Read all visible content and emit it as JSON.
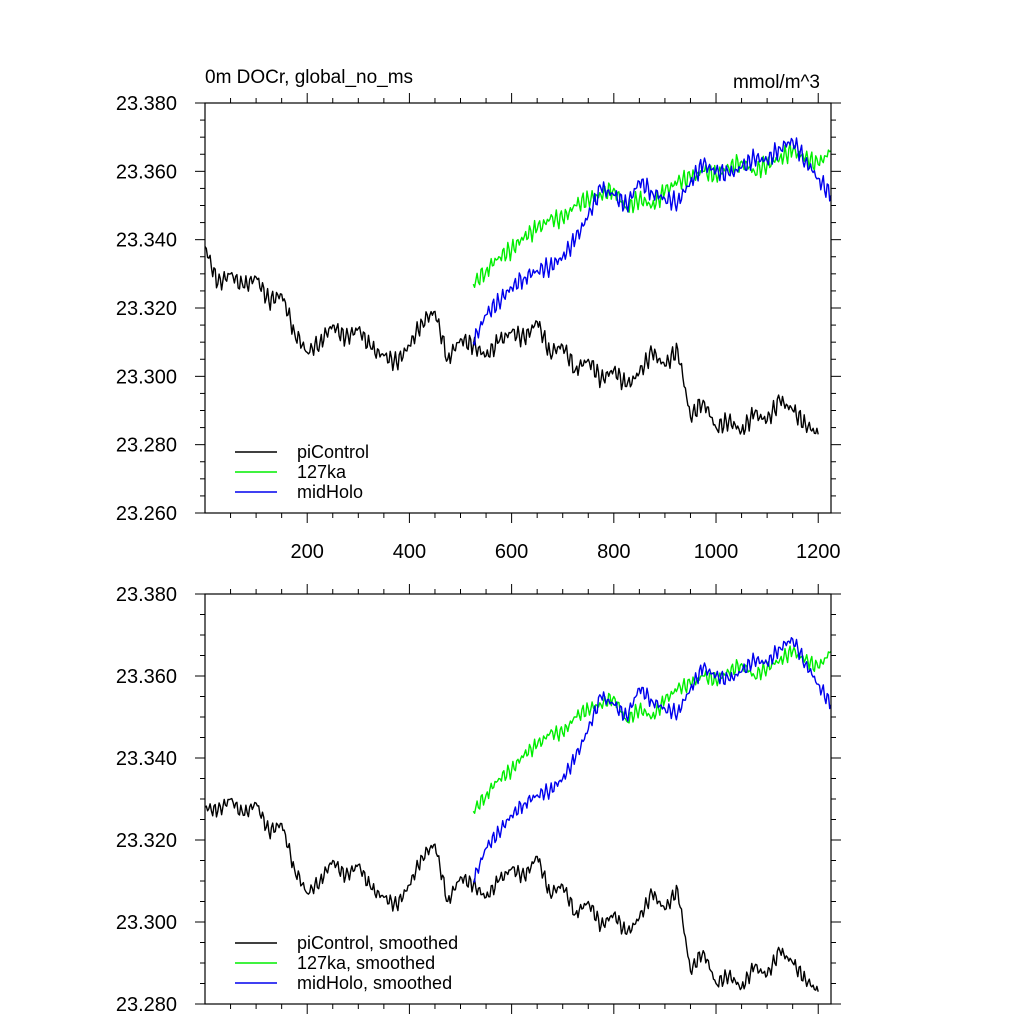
{
  "chart_data": [
    {
      "type": "line",
      "title": "0m DOCr, global_no_ms",
      "units": "mmol/m^3",
      "xlabel": "",
      "ylabel": "",
      "xlim": [
        0,
        1225
      ],
      "ylim": [
        23.26,
        23.38
      ],
      "xticks": [
        200,
        400,
        600,
        800,
        1000,
        1200
      ],
      "xtick_labels": [
        "200",
        "400",
        "600",
        "800",
        "1000",
        "1200"
      ],
      "yticks": [
        23.26,
        23.28,
        23.3,
        23.32,
        23.34,
        23.36,
        23.38
      ],
      "ytick_labels": [
        "23.260",
        "23.280",
        "23.300",
        "23.320",
        "23.340",
        "23.360",
        "23.380"
      ],
      "grid": false,
      "legend_position": "bottom-left",
      "series": [
        {
          "name": "piControl",
          "color": "#000000",
          "x": [
            0,
            25,
            50,
            75,
            100,
            125,
            150,
            175,
            200,
            225,
            250,
            275,
            300,
            325,
            350,
            375,
            400,
            425,
            450,
            475,
            500,
            525,
            550,
            575,
            600,
            625,
            650,
            675,
            700,
            725,
            750,
            775,
            800,
            825,
            850,
            875,
            900,
            925,
            950,
            975,
            1000,
            1025,
            1050,
            1075,
            1100,
            1125,
            1150,
            1175,
            1200
          ],
          "y": [
            23.338,
            23.327,
            23.33,
            23.326,
            23.329,
            23.322,
            23.324,
            23.313,
            23.307,
            23.31,
            23.315,
            23.311,
            23.314,
            23.308,
            23.306,
            23.304,
            23.309,
            23.316,
            23.319,
            23.305,
            23.311,
            23.309,
            23.306,
            23.31,
            23.313,
            23.311,
            23.316,
            23.307,
            23.309,
            23.302,
            23.305,
            23.299,
            23.302,
            23.297,
            23.301,
            23.307,
            23.303,
            23.308,
            23.288,
            23.293,
            23.285,
            23.287,
            23.284,
            23.289,
            23.287,
            23.293,
            23.29,
            23.286,
            23.283
          ]
        },
        {
          "name": "127ka",
          "color": "#00ee00",
          "x": [
            525,
            550,
            575,
            600,
            625,
            650,
            675,
            700,
            725,
            750,
            775,
            800,
            825,
            850,
            875,
            900,
            925,
            950,
            975,
            1000,
            1025,
            1050,
            1075,
            1100,
            1125,
            1150,
            1175,
            1200,
            1225
          ],
          "y": [
            23.327,
            23.331,
            23.335,
            23.337,
            23.341,
            23.343,
            23.346,
            23.346,
            23.35,
            23.352,
            23.353,
            23.355,
            23.349,
            23.352,
            23.35,
            23.354,
            23.357,
            23.358,
            23.36,
            23.359,
            23.361,
            23.363,
            23.36,
            23.362,
            23.364,
            23.366,
            23.364,
            23.362,
            23.366
          ]
        },
        {
          "name": "midHolo",
          "color": "#0000ee",
          "x": [
            525,
            550,
            575,
            600,
            625,
            650,
            675,
            700,
            725,
            750,
            775,
            800,
            825,
            850,
            875,
            900,
            925,
            950,
            975,
            1000,
            1025,
            1050,
            1075,
            1100,
            1125,
            1150,
            1175,
            1200,
            1225
          ],
          "y": [
            23.31,
            23.318,
            23.322,
            23.326,
            23.329,
            23.331,
            23.332,
            23.335,
            23.34,
            23.347,
            23.355,
            23.353,
            23.35,
            23.357,
            23.354,
            23.352,
            23.351,
            23.357,
            23.362,
            23.36,
            23.359,
            23.361,
            23.364,
            23.363,
            23.367,
            23.369,
            23.363,
            23.358,
            23.353
          ]
        }
      ]
    },
    {
      "type": "line",
      "title": "",
      "xlabel": "",
      "ylabel": "",
      "xlim": [
        0,
        1225
      ],
      "ylim": [
        23.28,
        23.38
      ],
      "xticks": [
        200,
        400,
        600,
        800,
        1000,
        1200
      ],
      "yticks": [
        23.28,
        23.3,
        23.32,
        23.34,
        23.36,
        23.38
      ],
      "ytick_labels": [
        "23.280",
        "23.300",
        "23.320",
        "23.340",
        "23.360",
        "23.380"
      ],
      "grid": false,
      "legend_position": "bottom-left",
      "series": [
        {
          "name": "piControl, smoothed",
          "color": "#000000",
          "x": [
            0,
            25,
            50,
            75,
            100,
            125,
            150,
            175,
            200,
            225,
            250,
            275,
            300,
            325,
            350,
            375,
            400,
            425,
            450,
            475,
            500,
            525,
            550,
            575,
            600,
            625,
            650,
            675,
            700,
            725,
            750,
            775,
            800,
            825,
            850,
            875,
            900,
            925,
            950,
            975,
            1000,
            1025,
            1050,
            1075,
            1100,
            1125,
            1150,
            1175,
            1200
          ],
          "y": [
            23.328,
            23.327,
            23.33,
            23.326,
            23.329,
            23.322,
            23.324,
            23.313,
            23.307,
            23.31,
            23.315,
            23.311,
            23.314,
            23.308,
            23.306,
            23.304,
            23.309,
            23.316,
            23.319,
            23.305,
            23.311,
            23.309,
            23.306,
            23.31,
            23.313,
            23.311,
            23.316,
            23.307,
            23.309,
            23.302,
            23.305,
            23.299,
            23.302,
            23.297,
            23.301,
            23.307,
            23.303,
            23.308,
            23.288,
            23.293,
            23.285,
            23.287,
            23.284,
            23.289,
            23.287,
            23.293,
            23.29,
            23.286,
            23.283
          ]
        },
        {
          "name": "127ka, smoothed",
          "color": "#00ee00",
          "x": [
            525,
            550,
            575,
            600,
            625,
            650,
            675,
            700,
            725,
            750,
            775,
            800,
            825,
            850,
            875,
            900,
            925,
            950,
            975,
            1000,
            1025,
            1050,
            1075,
            1100,
            1125,
            1150,
            1175,
            1200,
            1225
          ],
          "y": [
            23.327,
            23.331,
            23.335,
            23.337,
            23.341,
            23.343,
            23.346,
            23.346,
            23.35,
            23.352,
            23.353,
            23.355,
            23.349,
            23.352,
            23.35,
            23.354,
            23.357,
            23.358,
            23.36,
            23.359,
            23.361,
            23.363,
            23.36,
            23.362,
            23.364,
            23.366,
            23.364,
            23.362,
            23.366
          ]
        },
        {
          "name": "midHolo, smoothed",
          "color": "#0000ee",
          "x": [
            525,
            550,
            575,
            600,
            625,
            650,
            675,
            700,
            725,
            750,
            775,
            800,
            825,
            850,
            875,
            900,
            925,
            950,
            975,
            1000,
            1025,
            1050,
            1075,
            1100,
            1125,
            1150,
            1175,
            1200,
            1225
          ],
          "y": [
            23.31,
            23.318,
            23.322,
            23.326,
            23.329,
            23.331,
            23.332,
            23.335,
            23.34,
            23.347,
            23.355,
            23.353,
            23.35,
            23.357,
            23.354,
            23.352,
            23.351,
            23.357,
            23.362,
            23.36,
            23.359,
            23.361,
            23.364,
            23.363,
            23.367,
            23.369,
            23.363,
            23.358,
            23.353
          ]
        }
      ]
    }
  ]
}
